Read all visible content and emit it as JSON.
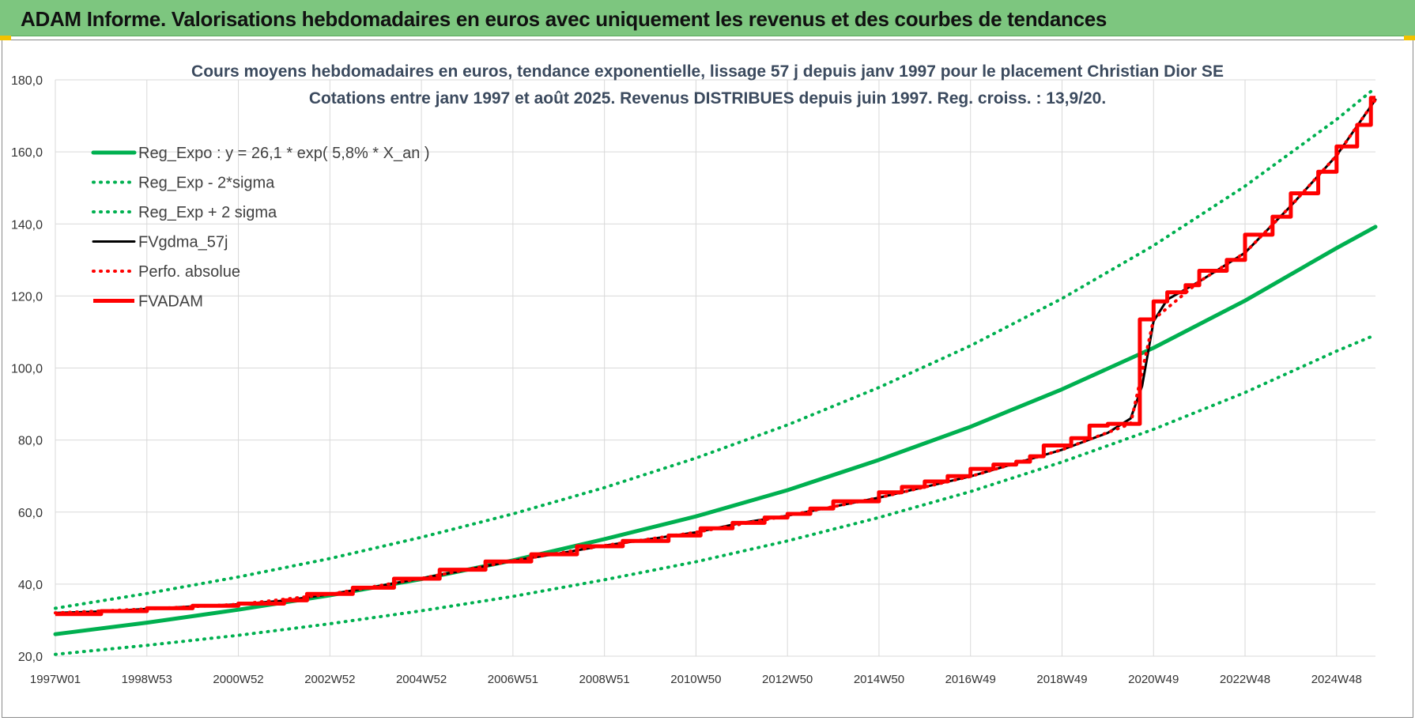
{
  "banner": {
    "title": "ADAM Informe. Valorisations hebdomadaires en euros avec uniquement les revenus et des courbes de tendances"
  },
  "chart_data": {
    "type": "line",
    "title": "Cours moyens hebdomadaires en euros, tendance exponentielle, lissage 57 j depuis janv 1997 pour le placement Christian Dior SE",
    "subtitle": "Cotations entre janv 1997 et août 2025. Revenus DISTRIBUES depuis juin 1997. Reg. croiss. : 13,9/20.",
    "x_tick_labels": [
      "1997W01",
      "1998W53",
      "2000W52",
      "2002W52",
      "2004W52",
      "2006W51",
      "2008W51",
      "2010W50",
      "2012W50",
      "2014W50",
      "2016W49",
      "2018W49",
      "2020W49",
      "2022W48",
      "2024W48"
    ],
    "x_tick_years": [
      1997.0,
      1999.0,
      2001.0,
      2003.0,
      2005.0,
      2007.0,
      2009.0,
      2011.0,
      2013.0,
      2015.0,
      2017.0,
      2019.0,
      2021.0,
      2023.0,
      2025.0
    ],
    "x_range": [
      1997.0,
      2025.85
    ],
    "y_tick_labels": [
      "20,0",
      "40,0",
      "60,0",
      "80,0",
      "100,0",
      "120,0",
      "140,0",
      "160,0",
      "180,0"
    ],
    "ylim": [
      20,
      180
    ],
    "grid": true,
    "legend_position": "top-left",
    "series": [
      {
        "name": "Reg_Expo : y = 26,1 * exp( 5,8% *  X_an )",
        "color": "#00b050",
        "style": "solid",
        "points": [
          [
            1997.0,
            26.1
          ],
          [
            1999.0,
            29.3
          ],
          [
            2001.0,
            32.9
          ],
          [
            2003.0,
            36.9
          ],
          [
            2005.0,
            41.4
          ],
          [
            2007.0,
            46.6
          ],
          [
            2009.0,
            52.5
          ],
          [
            2011.0,
            58.8
          ],
          [
            2013.0,
            66.1
          ],
          [
            2015.0,
            74.5
          ],
          [
            2017.0,
            83.7
          ],
          [
            2019.0,
            94.1
          ],
          [
            2021.0,
            105.6
          ],
          [
            2023.0,
            118.7
          ],
          [
            2025.0,
            133.3
          ],
          [
            2025.85,
            139.2
          ]
        ]
      },
      {
        "name": "Reg_Exp - 2*sigma",
        "color": "#00b050",
        "style": "dotted",
        "points": [
          [
            1997.0,
            20.5
          ],
          [
            1999.0,
            23.0
          ],
          [
            2001.0,
            25.8
          ],
          [
            2003.0,
            29.0
          ],
          [
            2005.0,
            32.6
          ],
          [
            2007.0,
            36.6
          ],
          [
            2009.0,
            41.2
          ],
          [
            2011.0,
            46.2
          ],
          [
            2013.0,
            52.0
          ],
          [
            2015.0,
            58.5
          ],
          [
            2017.0,
            65.7
          ],
          [
            2019.0,
            73.9
          ],
          [
            2021.0,
            83.0
          ],
          [
            2023.0,
            93.2
          ],
          [
            2025.0,
            104.7
          ],
          [
            2025.85,
            109.2
          ]
        ]
      },
      {
        "name": "Reg_Exp + 2 sigma",
        "color": "#00b050",
        "style": "dotted",
        "points": [
          [
            1997.0,
            33.3
          ],
          [
            1999.0,
            37.4
          ],
          [
            2001.0,
            42.0
          ],
          [
            2003.0,
            47.1
          ],
          [
            2005.0,
            53.0
          ],
          [
            2007.0,
            59.5
          ],
          [
            2009.0,
            66.8
          ],
          [
            2011.0,
            75.0
          ],
          [
            2013.0,
            84.2
          ],
          [
            2015.0,
            94.6
          ],
          [
            2017.0,
            106.2
          ],
          [
            2019.0,
            119.3
          ],
          [
            2021.0,
            134.0
          ],
          [
            2023.0,
            150.5
          ],
          [
            2025.0,
            169.0
          ],
          [
            2025.85,
            177.8
          ]
        ]
      },
      {
        "name": "FVgdma_57j",
        "color": "#000000",
        "style": "solid",
        "points": [
          [
            1997.0,
            32.0
          ],
          [
            1998.0,
            32.4
          ],
          [
            1999.0,
            33.1
          ],
          [
            2000.0,
            33.8
          ],
          [
            2001.0,
            34.4
          ],
          [
            2002.0,
            35.4
          ],
          [
            2003.0,
            37.2
          ],
          [
            2004.0,
            39.3
          ],
          [
            2005.0,
            41.6
          ],
          [
            2006.0,
            44.0
          ],
          [
            2007.0,
            46.5
          ],
          [
            2008.0,
            48.5
          ],
          [
            2009.0,
            50.7
          ],
          [
            2010.0,
            52.5
          ],
          [
            2011.0,
            54.4
          ],
          [
            2012.0,
            57.0
          ],
          [
            2013.0,
            59.0
          ],
          [
            2014.0,
            61.5
          ],
          [
            2015.0,
            64.0
          ],
          [
            2016.0,
            67.0
          ],
          [
            2017.0,
            69.9
          ],
          [
            2018.0,
            73.6
          ],
          [
            2019.0,
            77.3
          ],
          [
            2020.0,
            82.0
          ],
          [
            2020.5,
            86.0
          ],
          [
            2020.75,
            95.0
          ],
          [
            2021.0,
            113.0
          ],
          [
            2021.3,
            119.0
          ],
          [
            2022.0,
            124.0
          ],
          [
            2023.0,
            132.0
          ],
          [
            2024.0,
            145.0
          ],
          [
            2025.0,
            159.0
          ],
          [
            2025.85,
            174.5
          ]
        ]
      },
      {
        "name": "Perfo. absolue",
        "color": "#ff0000",
        "style": "dotted",
        "points": [
          [
            1997.0,
            32.0
          ],
          [
            1999.0,
            33.1
          ],
          [
            2001.0,
            34.4
          ],
          [
            2003.0,
            37.2
          ],
          [
            2005.0,
            41.6
          ],
          [
            2007.0,
            46.5
          ],
          [
            2009.0,
            50.7
          ],
          [
            2011.0,
            54.4
          ],
          [
            2013.0,
            59.0
          ],
          [
            2015.0,
            64.0
          ],
          [
            2017.0,
            69.9
          ],
          [
            2019.0,
            77.3
          ],
          [
            2020.5,
            84.5
          ],
          [
            2021.0,
            113.5
          ],
          [
            2022.0,
            124.0
          ],
          [
            2023.0,
            132.0
          ],
          [
            2024.0,
            145.0
          ],
          [
            2025.0,
            159.0
          ],
          [
            2025.85,
            174.5
          ]
        ]
      },
      {
        "name": "FVADAM",
        "color": "#ff0000",
        "style": "step",
        "points": [
          [
            1997.0,
            31.7
          ],
          [
            1998.0,
            32.5
          ],
          [
            1999.0,
            33.3
          ],
          [
            2000.0,
            34.0
          ],
          [
            2001.0,
            34.6
          ],
          [
            2002.0,
            35.5
          ],
          [
            2002.5,
            37.3
          ],
          [
            2003.5,
            39.0
          ],
          [
            2004.4,
            41.5
          ],
          [
            2005.4,
            44.0
          ],
          [
            2006.4,
            46.3
          ],
          [
            2007.4,
            48.3
          ],
          [
            2008.4,
            50.5
          ],
          [
            2009.4,
            52.0
          ],
          [
            2010.4,
            53.5
          ],
          [
            2011.1,
            55.5
          ],
          [
            2011.8,
            57.0
          ],
          [
            2012.5,
            58.5
          ],
          [
            2013.0,
            59.5
          ],
          [
            2013.5,
            61.0
          ],
          [
            2014.0,
            63.0
          ],
          [
            2015.0,
            65.5
          ],
          [
            2015.5,
            67.0
          ],
          [
            2016.0,
            68.5
          ],
          [
            2016.5,
            70.0
          ],
          [
            2017.0,
            72.0
          ],
          [
            2017.5,
            73.2
          ],
          [
            2018.0,
            74.0
          ],
          [
            2018.3,
            75.5
          ],
          [
            2018.6,
            78.5
          ],
          [
            2019.2,
            80.5
          ],
          [
            2019.6,
            84.0
          ],
          [
            2020.0,
            84.5
          ],
          [
            2020.7,
            113.5
          ],
          [
            2021.0,
            118.5
          ],
          [
            2021.3,
            121.0
          ],
          [
            2021.7,
            123.0
          ],
          [
            2022.0,
            127.0
          ],
          [
            2022.6,
            130.0
          ],
          [
            2023.0,
            137.0
          ],
          [
            2023.6,
            142.0
          ],
          [
            2024.0,
            148.5
          ],
          [
            2024.6,
            154.5
          ],
          [
            2025.0,
            161.5
          ],
          [
            2025.45,
            167.5
          ],
          [
            2025.75,
            175.0
          ],
          [
            2025.85,
            175.0
          ]
        ]
      }
    ]
  }
}
